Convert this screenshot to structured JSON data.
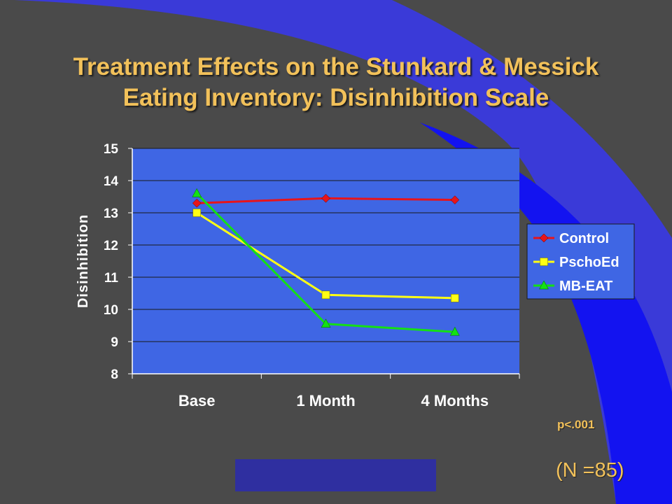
{
  "slide": {
    "title_line1": "Treatment Effects on the Stunkard & Messick",
    "title_line2": "Eating Inventory: Disinhibition Scale",
    "p_value": "p<.001",
    "n_note": "(N =85)"
  },
  "colors": {
    "background": "#4a4a4a",
    "accent_blue": "#1313f0",
    "plot_area": "#3f66e4",
    "title_text": "#f2c15a",
    "control": "#e8141a",
    "pschoed": "#ffff14",
    "mbeat": "#14e014"
  },
  "chart_data": {
    "type": "line",
    "title": "",
    "xlabel": "",
    "ylabel": "Disinhibition",
    "categories": [
      "Base",
      "1 Month",
      "4 Months"
    ],
    "ylim": [
      8,
      15
    ],
    "yticks": [
      8,
      9,
      10,
      11,
      12,
      13,
      14,
      15
    ],
    "grid": "horizontal",
    "legend_position": "right",
    "series": [
      {
        "name": "Control",
        "values": [
          13.3,
          13.45,
          13.4
        ],
        "color": "#e8141a",
        "marker": "diamond"
      },
      {
        "name": "PschoEd",
        "values": [
          13.0,
          10.45,
          10.35
        ],
        "color": "#ffff14",
        "marker": "square"
      },
      {
        "name": "MB-EAT",
        "values": [
          13.6,
          9.55,
          9.3
        ],
        "color": "#14e014",
        "marker": "triangle"
      }
    ]
  }
}
